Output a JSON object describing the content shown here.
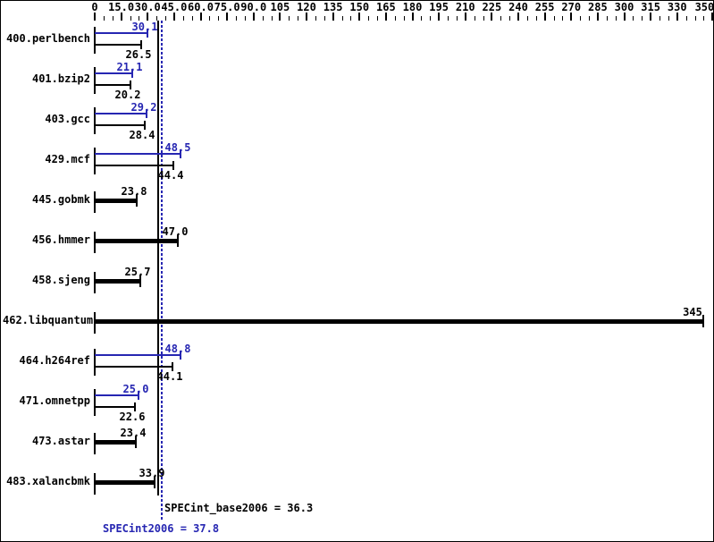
{
  "chart_data": {
    "type": "bar",
    "orientation": "horizontal",
    "title": "",
    "axis": {
      "position": "top",
      "min": 0,
      "max": 350,
      "major_tick_interval": 15,
      "minor_tick_interval": 5,
      "tick_labels": [
        "0",
        "15.0",
        "30.0",
        "45.0",
        "60.0",
        "75.0",
        "90.0",
        "105",
        "120",
        "135",
        "150",
        "165",
        "180",
        "195",
        "210",
        "225",
        "240",
        "255",
        "270",
        "285",
        "300",
        "315",
        "330"
      ],
      "end_tick_label": "350"
    },
    "benchmarks": [
      {
        "name": "400.perlbench",
        "peak": 30.1,
        "base": 26.5,
        "peak_label": "30.1",
        "base_label": "26.5"
      },
      {
        "name": "401.bzip2",
        "peak": 21.1,
        "base": 20.2,
        "peak_label": "21.1",
        "base_label": "20.2"
      },
      {
        "name": "403.gcc",
        "peak": 29.2,
        "base": 28.4,
        "peak_label": "29.2",
        "base_label": "28.4"
      },
      {
        "name": "429.mcf",
        "peak": 48.5,
        "base": 44.4,
        "peak_label": "48.5",
        "base_label": "44.4"
      },
      {
        "name": "445.gobmk",
        "peak": null,
        "base": 23.8,
        "peak_label": null,
        "base_label": "23.8"
      },
      {
        "name": "456.hmmer",
        "peak": null,
        "base": 47.0,
        "peak_label": null,
        "base_label": "47.0"
      },
      {
        "name": "458.sjeng",
        "peak": null,
        "base": 25.7,
        "peak_label": null,
        "base_label": "25.7"
      },
      {
        "name": "462.libquantum",
        "peak": null,
        "base": 345,
        "peak_label": null,
        "base_label": "345"
      },
      {
        "name": "464.h264ref",
        "peak": 48.8,
        "base": 44.1,
        "peak_label": "48.8",
        "base_label": "44.1"
      },
      {
        "name": "471.omnetpp",
        "peak": 25.0,
        "base": 22.6,
        "peak_label": "25.0",
        "base_label": "22.6"
      },
      {
        "name": "473.astar",
        "peak": null,
        "base": 23.4,
        "peak_label": null,
        "base_label": "23.4"
      },
      {
        "name": "483.xalancbmk",
        "peak": null,
        "base": 33.9,
        "peak_label": null,
        "base_label": "33.9"
      }
    ],
    "summary": {
      "base": {
        "text": "SPECint_base2006 = 36.3",
        "value": 36.3
      },
      "peak": {
        "text": "SPECint2006 = 37.8",
        "value": 37.8
      }
    },
    "colors": {
      "peak": "#2626b2",
      "base": "#000000",
      "background": "#ffffff"
    },
    "legend": "none",
    "grid": "off"
  }
}
